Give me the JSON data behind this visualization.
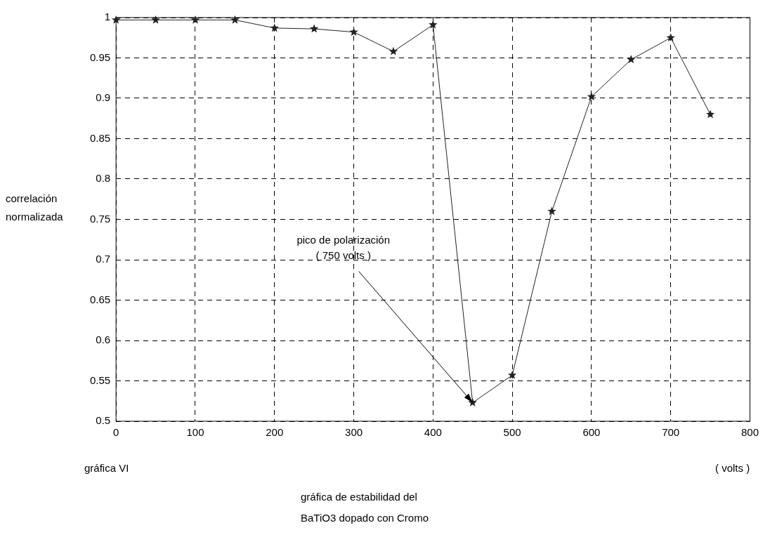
{
  "chart_data": {
    "type": "line",
    "xlabel": "( volts )",
    "ylabel": "correlación normalizada",
    "x": [
      0,
      50,
      100,
      150,
      200,
      250,
      300,
      350,
      400,
      450,
      500,
      550,
      600,
      650,
      700,
      750
    ],
    "series": [
      {
        "color": "#222222",
        "values": [
          0.997,
          0.997,
          0.997,
          0.997,
          0.987,
          0.986,
          0.982,
          0.958,
          0.991,
          0.523,
          0.557,
          0.76,
          0.902,
          0.948,
          0.975,
          0.88
        ]
      }
    ],
    "xlim": [
      0,
      800
    ],
    "xticks": [
      0,
      100,
      200,
      300,
      400,
      500,
      600,
      700,
      800
    ],
    "ylim": [
      0.5,
      1
    ],
    "yticks": [
      0.5,
      0.55,
      0.6,
      0.65,
      0.7,
      0.75,
      0.8,
      0.85,
      0.9,
      0.95,
      1
    ],
    "grid": true,
    "marker": "star",
    "line_style": "solid",
    "annotations": [
      {
        "text": "pico de polarización\n( 750 volts )",
        "x": 450,
        "y": 0.523
      },
      "gráfica VI",
      "gráfica de estabilidad del\nBaTiO3 dopado con Cromo"
    ]
  }
}
